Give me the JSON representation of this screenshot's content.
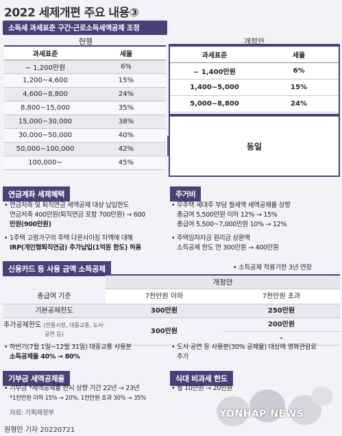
{
  "title": "2022 세제개편 주요 내용③",
  "income_tax": {
    "bar": "소득세 과세표준 구간·근로소득세액공제 조정",
    "current_label": "현행",
    "new_label": "개정안",
    "col_base": "과세표준",
    "col_rate": "세율",
    "current_rows": [
      [
        "~ 1,200만원",
        "6%"
      ],
      [
        "1,200~4,600",
        "15%"
      ],
      [
        "4,600~8,800",
        "24%"
      ],
      [
        "8,800~15,000",
        "35%"
      ],
      [
        "15,000~30,000",
        "38%"
      ],
      [
        "30,000~50,000",
        "40%"
      ],
      [
        "50,000~100,000",
        "42%"
      ],
      [
        "100,000~",
        "45%"
      ]
    ],
    "new_rows": [
      [
        "~ 1,400만원",
        "6%"
      ],
      [
        "1,400~5,000",
        "15%"
      ],
      [
        "5,000~8,800",
        "24%"
      ]
    ],
    "same": "동일"
  },
  "pension": {
    "bar": "연금계좌 세제혜택",
    "line1": "• 연금저축 및 퇴직연금 세액공제 대상 납입한도",
    "line2": "연금저축 400만원(퇴직연금 포함 700만원) → 600",
    "line3": "만원(900만원)",
    "line4": "• 1주택 고령가구의 주택 다운사이징 차액에 대해",
    "line5": "IRP(개인형퇴직연금) 추가납입(1억원 한도) 허용"
  },
  "housing": {
    "bar": "주거비",
    "line1": "• 무주택 세대주 부담 월세액 세액공제율 상향",
    "line2": "총급여 5,500만원 이하 12% → 15%",
    "line3": "총급여 5,500~7,000만원 10% → 12%",
    "line4": "• 주택임차자금 원리금 상환액",
    "line5": "소득공제 한도 연 300만원 → 400만원"
  },
  "card": {
    "bar": "신용카드 등 사용 금액 소득공제",
    "note": "• 소득공제 적용기한 3년 연장",
    "new_label": "개정안",
    "col0": "총급여 기준",
    "col1": "7천만원 이하",
    "col2": "7천만원 초과",
    "row1_label": "기본공제한도",
    "row1_v1": "300만원",
    "row1_v2": "250만원",
    "row2_label": "추가공제한도",
    "row2_sub": "(전통시장, 대중교통, 도서·공연 등)",
    "row2_v1": "300만원",
    "row2_v2a": "200만원",
    "row2_v2b": "-",
    "left_line1": "• 하반기(7월 1일~12월 31일) 대중교통 사용분",
    "left_line2": "소득공제율 40% → 80%",
    "right_line1": "• 도서·공연 등 사용분(30% 공제율) 대상에 영화관람료",
    "right_line2": "추가"
  },
  "donation": {
    "bar": "기부금 세액공제율",
    "line1": "• 기부금 *세액공제율 한시 상향 기간 22년 → 23년",
    "line2": "*1천만원 이하 15% → 20%, 1천만원 초과 30% → 35%"
  },
  "meal": {
    "bar": "식대 비과세 한도",
    "line1": "• 월 10만원 → 20만원"
  },
  "source": "자료: 기획재정부",
  "byline": "원형민 기자  20220721",
  "watermark": "YONHAP NEWS",
  "colors": {
    "accent": "#4b3f7a",
    "background": "#f4f2f7"
  }
}
